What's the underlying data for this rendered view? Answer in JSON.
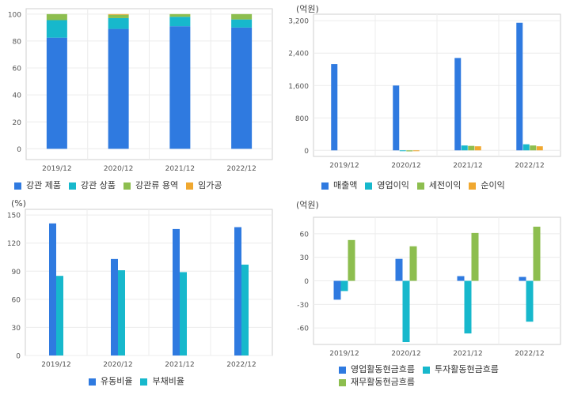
{
  "colors": {
    "blue": "#2f7ae0",
    "teal": "#17b8cc",
    "green": "#8dbe4f",
    "orange": "#f0a830"
  },
  "chart_data": [
    {
      "type": "bar",
      "stacked": true,
      "unit": "",
      "categories": [
        "2019/12",
        "2020/12",
        "2021/12",
        "2022/12"
      ],
      "ylim": [
        -8,
        104
      ],
      "yticks": [
        0,
        20,
        40,
        60,
        80,
        100
      ],
      "yticklabels": [
        "0",
        "20",
        "40",
        "60",
        "80",
        "100"
      ],
      "series": [
        {
          "name": "강관 제품",
          "color": "#2f7ae0",
          "values": [
            82.5,
            89,
            91,
            90
          ]
        },
        {
          "name": "강관 상품",
          "color": "#17b8cc",
          "values": [
            13,
            8,
            7,
            6
          ]
        },
        {
          "name": "강관류 용역",
          "color": "#8dbe4f",
          "values": [
            4.5,
            2.5,
            2,
            4
          ]
        },
        {
          "name": "임가공",
          "color": "#f0a830",
          "values": [
            0,
            0.5,
            0,
            0
          ]
        }
      ]
    },
    {
      "type": "bar",
      "unit": "(억원)",
      "categories": [
        "2019/12",
        "2020/12",
        "2021/12",
        "2022/12"
      ],
      "ylim": [
        -150,
        3360
      ],
      "yticks": [
        0,
        800,
        1600,
        2400,
        3200
      ],
      "yticklabels": [
        "0",
        "800",
        "1,600",
        "2,400",
        "3,200"
      ],
      "series": [
        {
          "name": "매출액",
          "color": "#2f7ae0",
          "values": [
            2130,
            1600,
            2280,
            3150
          ]
        },
        {
          "name": "영업이익",
          "color": "#17b8cc",
          "values": [
            0,
            -15,
            120,
            150
          ]
        },
        {
          "name": "세전이익",
          "color": "#8dbe4f",
          "values": [
            0,
            -25,
            110,
            120
          ]
        },
        {
          "name": "순이익",
          "color": "#f0a830",
          "values": [
            0,
            -20,
            100,
            100
          ]
        }
      ]
    },
    {
      "type": "bar",
      "unit": "(%)",
      "categories": [
        "2019/12",
        "2020/12",
        "2021/12",
        "2022/12"
      ],
      "ylim": [
        0,
        156
      ],
      "yticks": [
        0,
        30,
        60,
        90,
        120,
        150
      ],
      "yticklabels": [
        "0",
        "30",
        "60",
        "90",
        "120",
        "150"
      ],
      "series": [
        {
          "name": "유동비율",
          "color": "#2f7ae0",
          "values": [
            141,
            103,
            135,
            137
          ]
        },
        {
          "name": "부채비율",
          "color": "#17b8cc",
          "values": [
            85,
            91,
            89,
            97
          ]
        }
      ]
    },
    {
      "type": "bar",
      "unit": "(억원)",
      "categories": [
        "2019/12",
        "2020/12",
        "2021/12",
        "2022/12"
      ],
      "ylim": [
        -81,
        81
      ],
      "yticks": [
        -60,
        -30,
        0,
        30,
        60
      ],
      "yticklabels": [
        "-60",
        "-30",
        "0",
        "30",
        "60"
      ],
      "series": [
        {
          "name": "영업활동현금흐름",
          "color": "#2f7ae0",
          "values": [
            -24,
            28,
            6,
            5
          ]
        },
        {
          "name": "투자활동현금흐름",
          "color": "#17b8cc",
          "values": [
            -13,
            -78,
            -67,
            -52
          ]
        },
        {
          "name": "재무활동현금흐름",
          "color": "#8dbe4f",
          "values": [
            52,
            44,
            61,
            69
          ]
        }
      ]
    }
  ]
}
